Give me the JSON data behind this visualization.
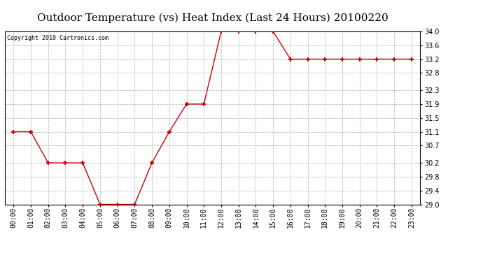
{
  "title": "Outdoor Temperature (vs) Heat Index (Last 24 Hours) 20100220",
  "copyright": "Copyright 2010 Cartronics.com",
  "x_labels": [
    "00:00",
    "01:00",
    "02:00",
    "03:00",
    "04:00",
    "05:00",
    "06:00",
    "07:00",
    "08:00",
    "09:00",
    "10:00",
    "11:00",
    "12:00",
    "13:00",
    "14:00",
    "15:00",
    "16:00",
    "17:00",
    "18:00",
    "19:00",
    "20:00",
    "21:00",
    "22:00",
    "23:00"
  ],
  "y_values": [
    31.1,
    31.1,
    30.2,
    30.2,
    30.2,
    29.0,
    29.0,
    29.0,
    30.2,
    31.1,
    31.9,
    31.9,
    34.0,
    34.0,
    34.0,
    34.0,
    33.2,
    33.2,
    33.2,
    33.2,
    33.2,
    33.2,
    33.2,
    33.2
  ],
  "line_color": "#cc0000",
  "marker": "+",
  "marker_size": 5,
  "marker_color": "#cc0000",
  "background_color": "#ffffff",
  "plot_bg_color": "#ffffff",
  "grid_color": "#bbbbbb",
  "ylim_min": 29.0,
  "ylim_max": 34.0,
  "yticks": [
    29.0,
    29.4,
    29.8,
    30.2,
    30.7,
    31.1,
    31.5,
    31.9,
    32.3,
    32.8,
    33.2,
    33.6,
    34.0
  ],
  "title_fontsize": 11,
  "tick_fontsize": 7,
  "copyright_fontsize": 6
}
